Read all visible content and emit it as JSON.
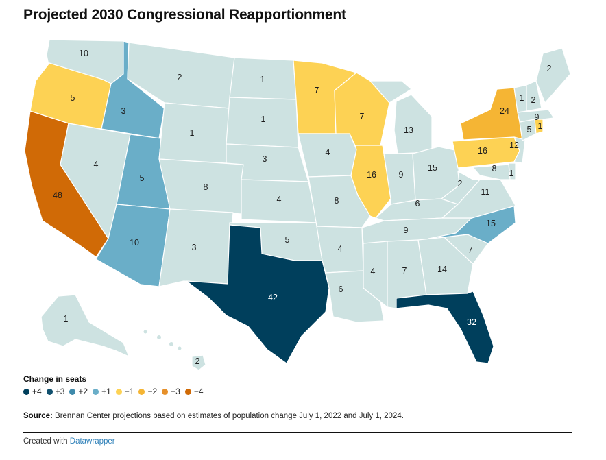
{
  "title": "Projected 2030 Congressional Reapportionment",
  "legend": {
    "title": "Change in seats",
    "items": [
      {
        "label": "+4",
        "color": "#003f5c"
      },
      {
        "label": "+3",
        "color": "#11506e"
      },
      {
        "label": "+2",
        "color": "#3f8aab"
      },
      {
        "label": "+1",
        "color": "#6aaec8"
      },
      {
        "label": "−1",
        "color": "#fdd254"
      },
      {
        "label": "−2",
        "color": "#f5b534"
      },
      {
        "label": "−3",
        "color": "#e6902a"
      },
      {
        "label": "−4",
        "color": "#d06a06"
      }
    ]
  },
  "source": {
    "label": "Source:",
    "text": " Brennan Center projections based on estimates of population change July 1, 2022 and July 1, 2024."
  },
  "credit": {
    "prefix": "Created with ",
    "link_text": "Datawrapper"
  },
  "colors": {
    "no_change": "#cde2e1"
  },
  "chart_data": {
    "type": "choropleth",
    "title": "Projected 2030 Congressional Reapportionment",
    "legend_title": "Change in seats",
    "states": [
      {
        "state": "WA",
        "seats": 10,
        "change": 0
      },
      {
        "state": "OR",
        "seats": 5,
        "change": -1
      },
      {
        "state": "CA",
        "seats": 48,
        "change": -4
      },
      {
        "state": "ID",
        "seats": 3,
        "change": 1
      },
      {
        "state": "NV",
        "seats": 4,
        "change": 0
      },
      {
        "state": "UT",
        "seats": 5,
        "change": 1
      },
      {
        "state": "AZ",
        "seats": 10,
        "change": 1
      },
      {
        "state": "MT",
        "seats": 2,
        "change": 0
      },
      {
        "state": "WY",
        "seats": 1,
        "change": 0
      },
      {
        "state": "CO",
        "seats": 8,
        "change": 0
      },
      {
        "state": "NM",
        "seats": 3,
        "change": 0
      },
      {
        "state": "ND",
        "seats": 1,
        "change": 0
      },
      {
        "state": "SD",
        "seats": 1,
        "change": 0
      },
      {
        "state": "NE",
        "seats": 3,
        "change": 0
      },
      {
        "state": "KS",
        "seats": 4,
        "change": 0
      },
      {
        "state": "OK",
        "seats": 5,
        "change": 0
      },
      {
        "state": "TX",
        "seats": 42,
        "change": 4
      },
      {
        "state": "MN",
        "seats": 7,
        "change": -1
      },
      {
        "state": "IA",
        "seats": 4,
        "change": 0
      },
      {
        "state": "MO",
        "seats": 8,
        "change": 0
      },
      {
        "state": "AR",
        "seats": 4,
        "change": 0
      },
      {
        "state": "LA",
        "seats": 6,
        "change": 0
      },
      {
        "state": "WI",
        "seats": 7,
        "change": -1
      },
      {
        "state": "IL",
        "seats": 16,
        "change": -1
      },
      {
        "state": "MI",
        "seats": 13,
        "change": 0
      },
      {
        "state": "IN",
        "seats": 9,
        "change": 0
      },
      {
        "state": "OH",
        "seats": 15,
        "change": 0
      },
      {
        "state": "KY",
        "seats": 6,
        "change": 0
      },
      {
        "state": "TN",
        "seats": 9,
        "change": 0
      },
      {
        "state": "MS",
        "seats": 4,
        "change": 0
      },
      {
        "state": "AL",
        "seats": 7,
        "change": 0
      },
      {
        "state": "GA",
        "seats": 14,
        "change": 0
      },
      {
        "state": "FL",
        "seats": 32,
        "change": 4
      },
      {
        "state": "SC",
        "seats": 7,
        "change": 0
      },
      {
        "state": "NC",
        "seats": 15,
        "change": 1
      },
      {
        "state": "VA",
        "seats": 11,
        "change": 0
      },
      {
        "state": "WV",
        "seats": 2,
        "change": 0
      },
      {
        "state": "PA",
        "seats": 16,
        "change": -1
      },
      {
        "state": "NY",
        "seats": 24,
        "change": -2
      },
      {
        "state": "NJ",
        "seats": 12,
        "change": 0
      },
      {
        "state": "DE",
        "seats": 1,
        "change": 0
      },
      {
        "state": "MD",
        "seats": 8,
        "change": 0
      },
      {
        "state": "CT",
        "seats": 5,
        "change": 0
      },
      {
        "state": "RI",
        "seats": 1,
        "change": -1
      },
      {
        "state": "MA",
        "seats": 9,
        "change": 0
      },
      {
        "state": "VT",
        "seats": 1,
        "change": 0
      },
      {
        "state": "NH",
        "seats": 2,
        "change": 0
      },
      {
        "state": "ME",
        "seats": 2,
        "change": 0
      },
      {
        "state": "AK",
        "seats": 1,
        "change": 0
      },
      {
        "state": "HI",
        "seats": 2,
        "change": 0
      }
    ]
  }
}
